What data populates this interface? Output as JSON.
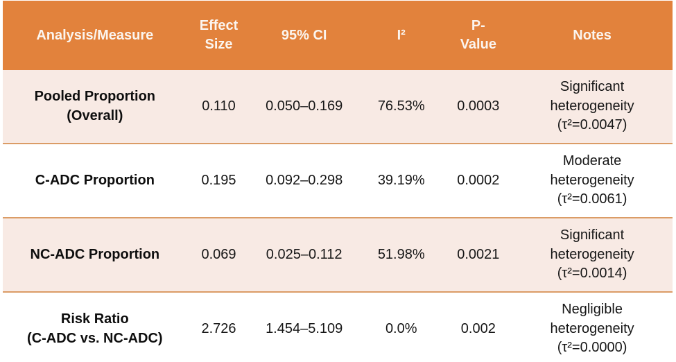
{
  "chart_data": {
    "type": "table",
    "columns": [
      "Analysis/Measure",
      "Effect\nSize",
      "95% CI",
      "I²",
      "P-\nValue",
      "Notes"
    ],
    "rows": [
      {
        "measure": "Pooled Proportion\n(Overall)",
        "effect_size": "0.110",
        "ci_95": "0.050–0.169",
        "i_squared": "76.53%",
        "p_value": "0.0003",
        "notes": "Significant\nheterogeneity\n(τ²=0.0047)"
      },
      {
        "measure": "C-ADC Proportion",
        "effect_size": "0.195",
        "ci_95": "0.092–0.298",
        "i_squared": "39.19%",
        "p_value": "0.0002",
        "notes": "Moderate\nheterogeneity\n(τ²=0.0061)"
      },
      {
        "measure": "NC-ADC Proportion",
        "effect_size": "0.069",
        "ci_95": "0.025–0.112",
        "i_squared": "51.98%",
        "p_value": "0.0021",
        "notes": "Significant\nheterogeneity\n(τ²=0.0014)"
      },
      {
        "measure": "Risk Ratio\n(C-ADC vs. NC-ADC)",
        "effect_size": "2.726",
        "ci_95": "1.454–5.109",
        "i_squared": "0.0%",
        "p_value": "0.002",
        "notes": "Negligible\nheterogeneity\n(τ²=0.0000)"
      }
    ]
  },
  "colors": {
    "header_bg": "#E2823C",
    "header_text": "#FBF5EF",
    "row_shaded_bg": "#F8EAE4",
    "row_plain_bg": "#FFFFFF",
    "row_divider": "#DB9C66",
    "body_text": "#161616"
  }
}
